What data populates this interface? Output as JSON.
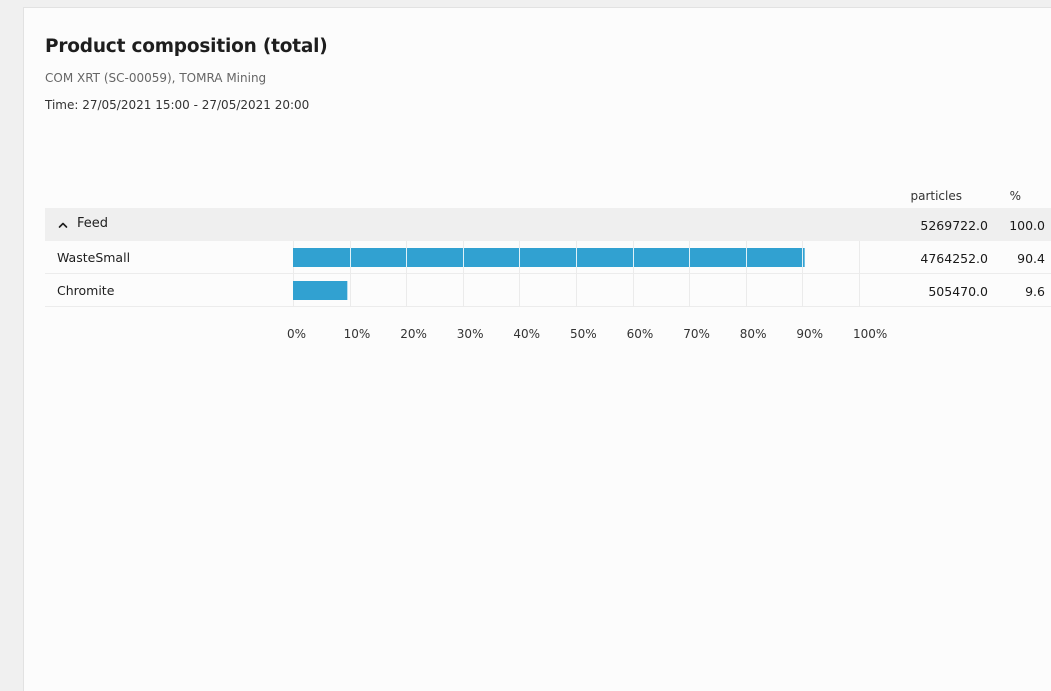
{
  "report": {
    "title": "Product composition (total)",
    "subtitle": "COM XRT (SC-00059), TOMRA Mining",
    "time": "Time: 27/05/2021 15:00 - 27/05/2021 20:00"
  },
  "table": {
    "columns": {
      "particles": "particles",
      "percent": "%"
    },
    "group": {
      "label": "Feed",
      "expanded": true,
      "particles": "5269722.0",
      "percent": "100.0"
    },
    "rows": [
      {
        "label": "WasteSmall",
        "particles": "4764252.0",
        "percent": "90.4"
      },
      {
        "label": "Chromite",
        "particles": "505470.0",
        "percent": "9.6"
      }
    ]
  },
  "chart_data": {
    "type": "bar",
    "orientation": "horizontal",
    "categories": [
      "WasteSmall",
      "Chromite"
    ],
    "values": [
      90.4,
      9.6
    ],
    "xlim": [
      0,
      100
    ],
    "x_ticks": [
      "0%",
      "10%",
      "20%",
      "30%",
      "40%",
      "50%",
      "60%",
      "70%",
      "80%",
      "90%",
      "100%"
    ],
    "grid": true,
    "bar_color": "#31a1d1"
  },
  "icons": {
    "group_toggle": "chevron-up-icon"
  }
}
